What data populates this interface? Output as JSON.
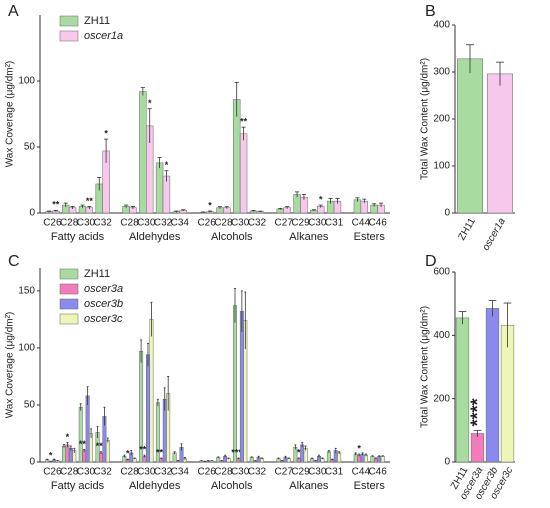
{
  "chart_data": [
    {
      "type": "grouped_bar",
      "panel": "A",
      "ylabel": "Wax Coverage (μg/dm²)",
      "ylim": [
        0,
        150
      ],
      "yticks": [
        0,
        50,
        100
      ],
      "groups": [
        {
          "name": "Fatty acids",
          "categories": [
            "C26",
            "C28",
            "C30",
            "C32"
          ]
        },
        {
          "name": "Aldehydes",
          "categories": [
            "C28",
            "C30",
            "C32",
            "C34"
          ]
        },
        {
          "name": "Alcohols",
          "categories": [
            "C26",
            "C28",
            "C30",
            "C32"
          ]
        },
        {
          "name": "Alkanes",
          "categories": [
            "C27",
            "C29",
            "C30",
            "C31"
          ]
        },
        {
          "name": "Esters",
          "categories": [
            "C44",
            "C46"
          ]
        }
      ],
      "series": [
        {
          "name": "ZH11",
          "color": "#a8dba0",
          "values": [
            1,
            6,
            5,
            22,
            5,
            92,
            38,
            1,
            0.5,
            4,
            86,
            1.5,
            3,
            14,
            2,
            9,
            10,
            6
          ],
          "errors": [
            0.5,
            1.5,
            1,
            5,
            1,
            3,
            4,
            0.5,
            0.3,
            0.8,
            13,
            0.5,
            0.5,
            2,
            0.5,
            2,
            1.5,
            1
          ]
        },
        {
          "name": "oscer1a",
          "color": "#f7c8ec",
          "values": [
            1.5,
            4,
            4,
            47,
            4,
            66,
            28,
            2,
            1,
            4,
            60,
            1,
            4,
            12,
            5,
            9,
            9,
            6
          ],
          "errors": [
            0.5,
            1,
            1,
            9,
            1,
            13,
            4,
            0.5,
            0.5,
            0.8,
            5,
            0.4,
            0.8,
            2,
            1,
            2,
            1.5,
            1.5
          ],
          "significance": [
            "**",
            null,
            "**",
            "*",
            null,
            "*",
            "*",
            null,
            "*",
            null,
            "**",
            null,
            null,
            null,
            "*",
            null,
            null,
            null
          ]
        }
      ]
    },
    {
      "type": "bar",
      "panel": "B",
      "ylabel": "Total Wax Content (μg/dm²)",
      "ylim": [
        0,
        400
      ],
      "yticks": [
        0,
        100,
        200,
        300,
        400
      ],
      "categories": [
        "ZH11",
        "oscer1a"
      ],
      "colors": [
        "#a8dba0",
        "#f7c8ec"
      ],
      "values": [
        328,
        296
      ],
      "errors": [
        30,
        25
      ]
    },
    {
      "type": "grouped_bar",
      "panel": "C",
      "ylabel": "Wax Coverage (μg/dm²)",
      "ylim": [
        0,
        170
      ],
      "yticks": [
        0,
        50,
        100,
        150
      ],
      "groups": [
        {
          "name": "Fatty acids",
          "categories": [
            "C26",
            "C28",
            "C30",
            "C32"
          ]
        },
        {
          "name": "Aldehydes",
          "categories": [
            "C28",
            "C30",
            "C32",
            "C34"
          ]
        },
        {
          "name": "Alcohols",
          "categories": [
            "C26",
            "C28",
            "C30",
            "C32"
          ]
        },
        {
          "name": "Alkanes",
          "categories": [
            "C27",
            "C29",
            "C30",
            "C31"
          ]
        },
        {
          "name": "Esters",
          "categories": [
            "C44",
            "C46"
          ]
        }
      ],
      "series": [
        {
          "name": "ZH11",
          "color": "#a8dba0",
          "values": [
            2,
            14,
            48,
            26,
            5,
            97,
            52,
            8,
            1,
            4,
            137,
            4,
            3,
            13,
            3,
            9,
            7,
            5
          ],
          "errors": [
            0.5,
            1.5,
            3,
            5,
            1,
            10,
            3,
            1,
            0.3,
            0.5,
            15,
            0.5,
            0.5,
            2,
            0.5,
            1,
            1,
            0.5
          ]
        },
        {
          "name": "oscer3a",
          "color": "#f27cba",
          "values": [
            0.5,
            15,
            10,
            8,
            2,
            5,
            3,
            1,
            0.5,
            1,
            3,
            1,
            1,
            3,
            1,
            2,
            6,
            3
          ],
          "errors": [
            0.2,
            2,
            1,
            1,
            0.5,
            1,
            0.5,
            0.3,
            0.2,
            0.3,
            0.5,
            0.3,
            0.3,
            0.5,
            0.3,
            0.5,
            1,
            0.5
          ],
          "significance": [
            "*",
            "*",
            "***",
            "***",
            "*",
            "***",
            "***",
            null,
            null,
            null,
            "****",
            null,
            null,
            "*",
            null,
            null,
            "*",
            null
          ]
        },
        {
          "name": "oscer3b",
          "color": "#8a8aee",
          "values": [
            2,
            12,
            58,
            40,
            8,
            94,
            55,
            13,
            1,
            5,
            132,
            4,
            4,
            15,
            5,
            10,
            7,
            5
          ],
          "errors": [
            0.5,
            2,
            8,
            8,
            2,
            10,
            10,
            3,
            0.3,
            1,
            18,
            1,
            1,
            2,
            1,
            2,
            1,
            0.5
          ]
        },
        {
          "name": "oscer3c",
          "color": "#eef6b6",
          "values": [
            1,
            10,
            25,
            19,
            3,
            125,
            60,
            3,
            1,
            3,
            124,
            3,
            3,
            12,
            3,
            8,
            6,
            5
          ],
          "errors": [
            0.3,
            2,
            4,
            2,
            0.5,
            15,
            15,
            1,
            0.3,
            0.5,
            25,
            0.5,
            0.5,
            2,
            0.5,
            1,
            1,
            0.5
          ]
        }
      ]
    },
    {
      "type": "bar",
      "panel": "D",
      "ylabel": "Total Wax Content (μg/dm²)",
      "ylim": [
        0,
        600
      ],
      "yticks": [
        0,
        200,
        400,
        600
      ],
      "categories": [
        "ZH11",
        "oscer3a",
        "oscer3b",
        "oscer3c"
      ],
      "colors": [
        "#a8dba0",
        "#f27cba",
        "#8a8aee",
        "#eef6b6"
      ],
      "values": [
        455,
        90,
        485,
        432
      ],
      "errors": [
        20,
        10,
        25,
        70
      ],
      "significance": [
        null,
        "****",
        null,
        null
      ]
    }
  ]
}
